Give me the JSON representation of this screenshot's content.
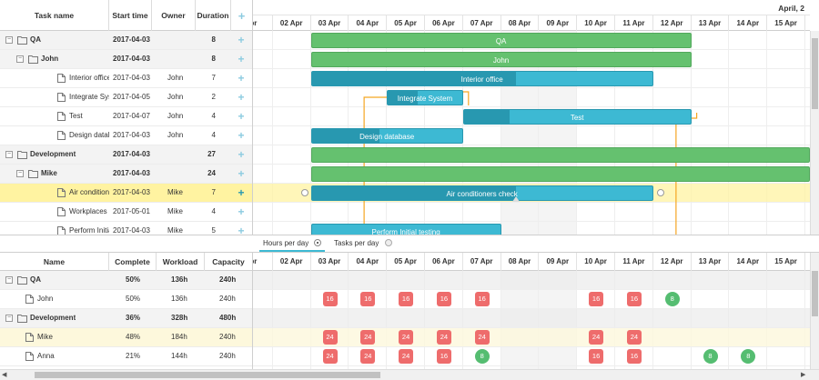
{
  "task_grid": {
    "columns": [
      "Task name",
      "Start time",
      "Owner",
      "Duration"
    ],
    "rows": [
      {
        "name": "QA",
        "start": "2017-04-03",
        "owner": "",
        "dur": "8",
        "group": true,
        "level": 0
      },
      {
        "name": "John",
        "start": "2017-04-03",
        "owner": "",
        "dur": "8",
        "group": true,
        "level": 1
      },
      {
        "name": "Interior office",
        "start": "2017-04-03",
        "owner": "John",
        "dur": "7",
        "group": false,
        "level": 2
      },
      {
        "name": "Integrate System",
        "start": "2017-04-05",
        "owner": "John",
        "dur": "2",
        "group": false,
        "level": 2
      },
      {
        "name": "Test",
        "start": "2017-04-07",
        "owner": "John",
        "dur": "4",
        "group": false,
        "level": 2
      },
      {
        "name": "Design database",
        "start": "2017-04-03",
        "owner": "John",
        "dur": "4",
        "group": false,
        "level": 2
      },
      {
        "name": "Development",
        "start": "2017-04-03",
        "owner": "",
        "dur": "27",
        "group": true,
        "level": 0
      },
      {
        "name": "Mike",
        "start": "2017-04-03",
        "owner": "",
        "dur": "24",
        "group": true,
        "level": 1
      },
      {
        "name": "Air conditioners chec",
        "start": "2017-04-03",
        "owner": "Mike",
        "dur": "7",
        "group": false,
        "level": 2,
        "selected": true
      },
      {
        "name": "Workplaces importat",
        "start": "2017-05-01",
        "owner": "Mike",
        "dur": "4",
        "group": false,
        "level": 2
      },
      {
        "name": "Perform Initial testing",
        "start": "2017-04-03",
        "owner": "Mike",
        "dur": "5",
        "group": false,
        "level": 2
      }
    ]
  },
  "timeline": {
    "month_label": "April, 2",
    "days": [
      "pr",
      "02 Apr",
      "03 Apr",
      "04 Apr",
      "05 Apr",
      "06 Apr",
      "07 Apr",
      "08 Apr",
      "09 Apr",
      "10 Apr",
      "11 Apr",
      "12 Apr",
      "13 Apr",
      "14 Apr",
      "15 Apr"
    ],
    "weekend_index": [
      7,
      8
    ],
    "bars": [
      {
        "row": 0,
        "label": "QA",
        "start": 2,
        "dur": 10,
        "color": "g",
        "progress": 0
      },
      {
        "row": 1,
        "label": "John",
        "start": 2,
        "dur": 10,
        "color": "g",
        "progress": 0
      },
      {
        "row": 2,
        "label": "Interior office",
        "start": 2,
        "dur": 9,
        "color": "b",
        "progress": 0.6
      },
      {
        "row": 3,
        "label": "Integrate System",
        "start": 4,
        "dur": 2,
        "color": "b",
        "progress": 0.4
      },
      {
        "row": 4,
        "label": "Test",
        "start": 6,
        "dur": 6,
        "color": "b",
        "progress": 0.2
      },
      {
        "row": 5,
        "label": "Design database",
        "start": 2,
        "dur": 4,
        "color": "b",
        "progress": 0.45
      },
      {
        "row": 6,
        "label": "",
        "start": 2,
        "dur": 13.5,
        "color": "g",
        "progress": 0
      },
      {
        "row": 7,
        "label": "",
        "start": 2,
        "dur": 13.5,
        "color": "g",
        "progress": 0
      },
      {
        "row": 8,
        "label": "Air conditioners check",
        "start": 2,
        "dur": 9,
        "color": "b",
        "progress": 0.6
      },
      {
        "row": 10,
        "label": "Perform Initial testing",
        "start": 2,
        "dur": 5,
        "color": "b",
        "progress": 0
      }
    ]
  },
  "toggle": {
    "hours": "Hours per day",
    "tasks": "Tasks per day"
  },
  "resource_grid": {
    "columns": [
      "Name",
      "Complete",
      "Workload",
      "Capacity"
    ],
    "rows": [
      {
        "name": "QA",
        "complete": "50%",
        "workload": "136h",
        "capacity": "240h",
        "group": true
      },
      {
        "name": "John",
        "complete": "50%",
        "workload": "136h",
        "capacity": "240h",
        "group": false
      },
      {
        "name": "Development",
        "complete": "36%",
        "workload": "328h",
        "capacity": "480h",
        "group": true
      },
      {
        "name": "Mike",
        "complete": "48%",
        "workload": "184h",
        "capacity": "240h",
        "group": false,
        "highlight": true
      },
      {
        "name": "Anna",
        "complete": "21%",
        "workload": "144h",
        "capacity": "240h",
        "group": false
      }
    ],
    "badges": [
      {
        "row": 1,
        "day": 2,
        "v": "16",
        "ok": false
      },
      {
        "row": 1,
        "day": 3,
        "v": "16",
        "ok": false
      },
      {
        "row": 1,
        "day": 4,
        "v": "16",
        "ok": false
      },
      {
        "row": 1,
        "day": 5,
        "v": "16",
        "ok": false
      },
      {
        "row": 1,
        "day": 6,
        "v": "16",
        "ok": false
      },
      {
        "row": 1,
        "day": 9,
        "v": "16",
        "ok": false
      },
      {
        "row": 1,
        "day": 10,
        "v": "16",
        "ok": false
      },
      {
        "row": 1,
        "day": 11,
        "v": "8",
        "ok": true
      },
      {
        "row": 3,
        "day": 2,
        "v": "24",
        "ok": false
      },
      {
        "row": 3,
        "day": 3,
        "v": "24",
        "ok": false
      },
      {
        "row": 3,
        "day": 4,
        "v": "24",
        "ok": false
      },
      {
        "row": 3,
        "day": 5,
        "v": "24",
        "ok": false
      },
      {
        "row": 3,
        "day": 6,
        "v": "24",
        "ok": false
      },
      {
        "row": 3,
        "day": 9,
        "v": "24",
        "ok": false
      },
      {
        "row": 3,
        "day": 10,
        "v": "24",
        "ok": false
      },
      {
        "row": 4,
        "day": 2,
        "v": "24",
        "ok": false
      },
      {
        "row": 4,
        "day": 3,
        "v": "24",
        "ok": false
      },
      {
        "row": 4,
        "day": 4,
        "v": "24",
        "ok": false
      },
      {
        "row": 4,
        "day": 5,
        "v": "16",
        "ok": false
      },
      {
        "row": 4,
        "day": 6,
        "v": "8",
        "ok": true
      },
      {
        "row": 4,
        "day": 9,
        "v": "16",
        "ok": false
      },
      {
        "row": 4,
        "day": 10,
        "v": "16",
        "ok": false
      },
      {
        "row": 4,
        "day": 12,
        "v": "8",
        "ok": true
      },
      {
        "row": 4,
        "day": 13,
        "v": "8",
        "ok": true
      }
    ]
  }
}
